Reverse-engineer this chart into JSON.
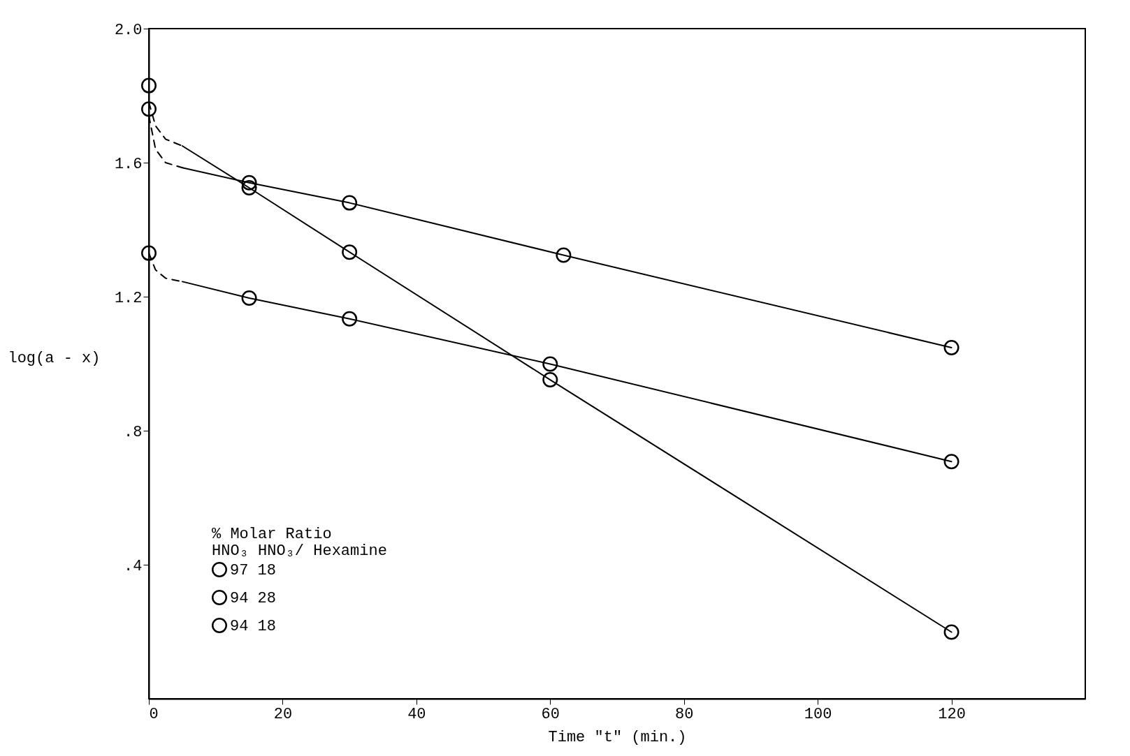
{
  "chart_data": {
    "type": "line",
    "xlabel": "Time \"t\" (min.)",
    "ylabel": "log(a - x)",
    "legend_title": [
      "%          Molar Ratio",
      "HNO₃     HNO₃/ Hexamine"
    ],
    "xlim": [
      0,
      140
    ],
    "ylim": [
      0,
      2.0
    ],
    "xticks": [
      0,
      20,
      40,
      60,
      80,
      100,
      120
    ],
    "yticks": [
      {
        "value": 0.4,
        "label": ".4"
      },
      {
        "value": 0.8,
        "label": ".8"
      },
      1.2,
      1.6,
      {
        "value": 2,
        "label": "2.0"
      }
    ],
    "grid": false,
    "legend": "bottom left",
    "series": [
      {
        "name": "97        18",
        "type": "scatter",
        "marker": "circle",
        "color": "#000000",
        "x": [
          0,
          15,
          30,
          62,
          120
        ],
        "values": [
          1.76,
          1.54,
          1.48,
          1.324,
          1.048
        ]
      },
      {
        "name": "94        28",
        "type": "scatter",
        "marker": "circle",
        "color": "#000000",
        "x": [
          0,
          15,
          30,
          60,
          120
        ],
        "values": [
          1.83,
          1.525,
          1.333,
          0.952,
          0.199
        ]
      },
      {
        "name": "94        18",
        "type": "scatter",
        "marker": "circle",
        "color": "#000000",
        "x": [
          0,
          15,
          30,
          60,
          120
        ],
        "values": [
          1.33,
          1.196,
          1.134,
          0.999,
          0.708
        ]
      },
      {
        "type": "line",
        "line_style": "dashed",
        "marker": "none",
        "color": "#000000",
        "x": [
          0,
          1,
          2.5,
          5
        ],
        "values": [
          1.74,
          1.64,
          1.6,
          1.585
        ]
      },
      {
        "line_style": "solid",
        "marker": "none",
        "color": "#000000",
        "x": [
          5,
          15,
          30,
          62,
          120
        ],
        "values": [
          1.585,
          1.54,
          1.48,
          1.324,
          1.048
        ]
      },
      {
        "type": "line",
        "line_style": "dashed",
        "marker": "none",
        "color": "#000000",
        "x": [
          0,
          1,
          2.5,
          5
        ],
        "values": [
          1.78,
          1.71,
          1.67,
          1.65
        ]
      },
      {
        "line_style": "solid",
        "marker": "none",
        "color": "#000000",
        "x": [
          5,
          15,
          30,
          60,
          120
        ],
        "values": [
          1.65,
          1.525,
          1.333,
          0.952,
          0.199
        ]
      },
      {
        "type": "line",
        "line_style": "dashed",
        "marker": "none",
        "color": "#000000",
        "x": [
          0,
          1,
          2.5,
          5
        ],
        "values": [
          1.33,
          1.28,
          1.255,
          1.245
        ]
      },
      {
        "line_style": "solid",
        "marker": "none",
        "color": "#000000",
        "x": [
          5,
          15,
          30,
          60,
          120
        ],
        "values": [
          1.245,
          1.196,
          1.134,
          0.999,
          0.708
        ]
      }
    ]
  }
}
